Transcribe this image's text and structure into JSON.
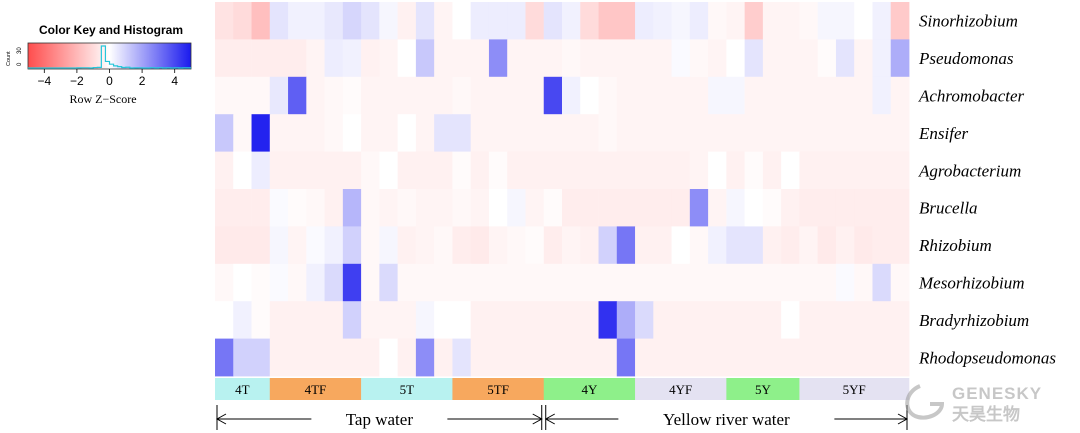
{
  "color_key": {
    "title": "Color Key and Histogram",
    "axis_label": "Row Z−Score",
    "count_label": "Count",
    "count_ticks": [
      "0",
      "30"
    ],
    "ticks": [
      {
        "value": -4,
        "label": "−4"
      },
      {
        "value": -2,
        "label": "−2"
      },
      {
        "value": 0,
        "label": "0"
      },
      {
        "value": 2,
        "label": "2"
      },
      {
        "value": 4,
        "label": "4"
      }
    ],
    "range": [
      -5,
      5
    ],
    "low_color": "#ff4d4d",
    "mid_color": "#ffffff",
    "high_color": "#1a1aee",
    "histogram_color": "#26c6da"
  },
  "chart_data": {
    "type": "heatmap",
    "title": "",
    "color_scale": "Row Z-Score",
    "zlim": [
      -5,
      5
    ],
    "rows": [
      "Sinorhizobium",
      "Pseudomonas",
      "Achromobacter",
      "Ensifer",
      "Agrobacterium",
      "Brucella",
      "Rhizobium",
      "Mesorhizobium",
      "Bradyrhizobium",
      "Rhodopseudomonas"
    ],
    "columns": 38,
    "values": [
      [
        -0.8,
        -1.0,
        -1.8,
        0.6,
        0.3,
        0.3,
        0.5,
        0.9,
        0.6,
        0.2,
        -0.4,
        0.6,
        -0.3,
        0.0,
        0.4,
        0.4,
        0.4,
        -1.0,
        0.6,
        0.3,
        -1.0,
        -1.6,
        -1.6,
        0.4,
        0.3,
        0.2,
        0.4,
        -0.2,
        -0.3,
        -1.4,
        -0.3,
        -0.3,
        -0.2,
        0.2,
        0.2,
        0.0,
        0.3,
        -1.5
      ],
      [
        -0.5,
        -0.5,
        -0.5,
        -0.5,
        -0.5,
        -0.3,
        0.4,
        0.3,
        -0.4,
        -0.3,
        0.0,
        1.2,
        -0.3,
        -0.3,
        -0.3,
        2.5,
        -0.3,
        -0.3,
        -0.3,
        -0.2,
        -0.3,
        -0.3,
        -0.3,
        -0.3,
        -0.3,
        0.1,
        -0.2,
        -0.3,
        0.0,
        0.6,
        -0.3,
        -0.3,
        -0.3,
        -0.1,
        0.6,
        -0.3,
        0.3,
        1.8
      ],
      [
        -0.2,
        -0.2,
        -0.2,
        0.5,
        3.5,
        -0.3,
        -0.2,
        -0.1,
        -0.3,
        -0.3,
        -0.3,
        -0.3,
        -0.3,
        -0.2,
        -0.3,
        -0.3,
        -0.3,
        -0.3,
        4.0,
        0.3,
        0.0,
        -0.2,
        -0.3,
        -0.3,
        -0.3,
        -0.3,
        -0.3,
        0.2,
        0.2,
        -0.3,
        -0.3,
        -0.3,
        -0.3,
        -0.3,
        -0.3,
        -0.3,
        0.3,
        -0.3
      ],
      [
        1.2,
        -0.2,
        4.8,
        -0.3,
        -0.3,
        -0.3,
        -0.2,
        0.0,
        -0.3,
        -0.3,
        0.0,
        -0.3,
        0.6,
        0.6,
        -0.3,
        -0.3,
        -0.3,
        -0.3,
        -0.3,
        -0.3,
        -0.3,
        -0.2,
        -0.3,
        -0.3,
        -0.3,
        -0.3,
        -0.3,
        -0.3,
        -0.3,
        -0.3,
        -0.3,
        -0.3,
        -0.3,
        -0.3,
        -0.3,
        -0.3,
        -0.3,
        -0.3
      ],
      [
        -0.4,
        0.0,
        0.4,
        -0.4,
        -0.4,
        -0.4,
        -0.4,
        -0.4,
        -0.2,
        0.0,
        -0.4,
        -0.4,
        -0.4,
        -0.1,
        -0.4,
        -0.1,
        -0.4,
        -0.4,
        -0.4,
        -0.4,
        -0.4,
        -0.4,
        -0.4,
        -0.4,
        -0.4,
        -0.4,
        -0.3,
        0.0,
        -0.4,
        -0.1,
        -0.4,
        0.0,
        -0.4,
        -0.4,
        -0.4,
        -0.4,
        -0.4,
        -0.4
      ],
      [
        -0.5,
        -0.5,
        -0.5,
        0.1,
        -0.1,
        -0.2,
        -0.4,
        1.6,
        -0.2,
        -0.3,
        -0.2,
        -0.3,
        -0.3,
        -0.2,
        -0.3,
        0.0,
        0.2,
        -0.3,
        -0.1,
        -0.5,
        -0.5,
        -0.5,
        -0.5,
        -0.5,
        -0.5,
        -0.5,
        2.5,
        -0.3,
        0.2,
        0.0,
        -0.1,
        -0.4,
        -0.5,
        -0.5,
        -0.5,
        -0.5,
        -0.5,
        -0.5
      ],
      [
        -0.6,
        -0.6,
        -0.6,
        0.2,
        -0.3,
        0.1,
        0.3,
        1.0,
        -0.2,
        0.2,
        -0.4,
        -0.3,
        -0.2,
        -0.5,
        -0.6,
        -0.3,
        -0.2,
        -0.1,
        -0.5,
        -0.3,
        -0.4,
        1.0,
        3.0,
        -0.4,
        -0.4,
        0.0,
        -0.2,
        0.3,
        0.6,
        0.6,
        -0.4,
        -0.5,
        -0.3,
        -0.6,
        -0.4,
        -0.6,
        -0.5,
        -0.5
      ],
      [
        -0.2,
        0.0,
        -0.1,
        0.1,
        -0.2,
        0.3,
        0.8,
        4.2,
        -0.2,
        0.8,
        -0.2,
        -0.2,
        -0.2,
        -0.2,
        -0.2,
        -0.2,
        -0.2,
        -0.2,
        -0.2,
        -0.2,
        -0.2,
        -0.2,
        -0.2,
        -0.2,
        -0.2,
        -0.2,
        -0.2,
        -0.2,
        -0.2,
        -0.2,
        -0.2,
        -0.2,
        -0.2,
        -0.2,
        0.1,
        -0.2,
        0.8,
        -0.2
      ],
      [
        0.0,
        0.3,
        -0.1,
        -0.4,
        -0.4,
        -0.4,
        -0.4,
        1.0,
        -0.3,
        -0.3,
        -0.3,
        0.2,
        0.0,
        0.0,
        -0.4,
        -0.4,
        -0.4,
        -0.4,
        -0.4,
        -0.4,
        -0.4,
        4.5,
        1.8,
        0.8,
        -0.4,
        -0.4,
        -0.4,
        -0.4,
        -0.4,
        -0.4,
        -0.4,
        0.0,
        -0.4,
        -0.4,
        -0.4,
        -0.4,
        -0.4,
        -0.4
      ],
      [
        3.0,
        1.0,
        1.0,
        -0.4,
        -0.4,
        -0.4,
        -0.4,
        -0.4,
        -0.4,
        0.0,
        -0.4,
        2.5,
        -0.4,
        0.6,
        -0.4,
        -0.4,
        -0.4,
        -0.4,
        -0.4,
        -0.4,
        -0.4,
        -0.4,
        3.0,
        -0.4,
        -0.4,
        -0.4,
        -0.4,
        -0.4,
        -0.4,
        -0.4,
        -0.4,
        -0.4,
        -0.4,
        -0.4,
        -0.4,
        -0.4,
        -0.4,
        -0.4
      ]
    ],
    "sample_groups": [
      {
        "label": "4T",
        "start": 0,
        "span": 3,
        "color": "#b8f2f0"
      },
      {
        "label": "4TF",
        "start": 3,
        "span": 5,
        "color": "#f7a85e"
      },
      {
        "label": "5T",
        "start": 8,
        "span": 5,
        "color": "#b8f2f0"
      },
      {
        "label": "5TF",
        "start": 13,
        "span": 5,
        "color": "#f7a85e"
      },
      {
        "label": "4Y",
        "start": 18,
        "span": 5,
        "color": "#8ef08a"
      },
      {
        "label": "4YF",
        "start": 23,
        "span": 5,
        "color": "#e4e2f2"
      },
      {
        "label": "5Y",
        "start": 28,
        "span": 4,
        "color": "#8ef08a"
      },
      {
        "label": "5YF",
        "start": 32,
        "span": 6,
        "color": "#e4e2f2"
      }
    ],
    "water_types": [
      {
        "label": "Tap water",
        "start": 0,
        "span": 18
      },
      {
        "label": "Yellow river water",
        "start": 18,
        "span": 20
      }
    ]
  },
  "watermark": {
    "brand": "GENESKY",
    "subtitle": "天昊生物"
  }
}
